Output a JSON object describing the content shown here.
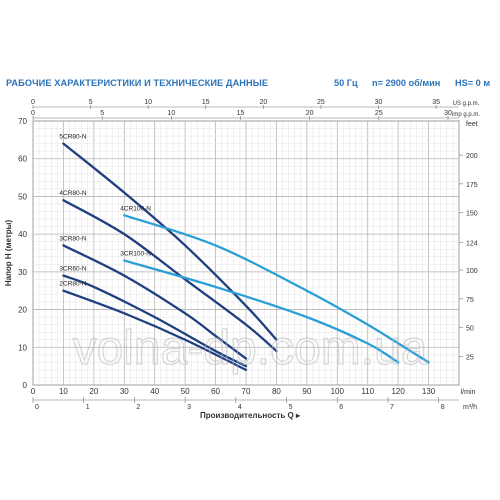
{
  "header": {
    "title": "РАБОЧИЕ ХАРАКТЕРИСТИКИ И ТЕХНИЧЕСКИЕ ДАННЫЕ",
    "frequency": "50 Гц",
    "speed": "n= 2900 об/мин",
    "hs": "HS= 0 м"
  },
  "watermark": "volna-dp.com.ua",
  "colors": {
    "dark_curve": "#1f3f80",
    "light_curve": "#2a9fd6",
    "axis_text": "#333333",
    "title": "#2c73b8",
    "grid": "#cfcfcf"
  },
  "chart_data": {
    "type": "line",
    "xlabel": "Производительность Q",
    "ylabel": "Напор Н (метры)",
    "xunit": "l/min",
    "xlim": [
      0,
      140
    ],
    "ylim": [
      0,
      70
    ],
    "x_ticks": [
      "0",
      "10",
      "20",
      "30",
      "40",
      "50",
      "60",
      "70",
      "80",
      "90",
      "100",
      "110",
      "120",
      "130"
    ],
    "y_ticks": [
      "0",
      "10",
      "20",
      "30",
      "40",
      "50",
      "60",
      "70"
    ],
    "right_axis": {
      "unit": "feet",
      "ticks": [
        "25",
        "50",
        "75",
        "100",
        "124",
        "150",
        "175",
        "200"
      ]
    },
    "top_axis_us": {
      "unit": "US g.p.m.",
      "ticks": [
        "0",
        "5",
        "10",
        "15",
        "20",
        "25",
        "30",
        "35"
      ]
    },
    "top_axis_imp": {
      "unit": "imp g.p.m.",
      "ticks": [
        "0",
        "5",
        "10",
        "15",
        "20",
        "25",
        "30"
      ]
    },
    "bottom_axis_m3h": {
      "unit": "m³/h",
      "ticks": [
        "0",
        "1",
        "2",
        "3",
        "4",
        "5",
        "6",
        "7",
        "8"
      ]
    },
    "series": [
      {
        "name": "5CR80-N",
        "color": "dark",
        "x": [
          10,
          30,
          50,
          70,
          80
        ],
        "y": [
          64,
          51,
          37,
          21,
          12
        ]
      },
      {
        "name": "4CR80-N",
        "color": "dark",
        "x": [
          10,
          30,
          50,
          70,
          80
        ],
        "y": [
          49,
          40,
          28,
          16,
          9
        ]
      },
      {
        "name": "3CR80-N",
        "color": "dark",
        "x": [
          10,
          30,
          50,
          60,
          70
        ],
        "y": [
          37,
          29,
          19,
          13,
          7
        ]
      },
      {
        "name": "3CR60-N",
        "color": "dark",
        "x": [
          10,
          20,
          40,
          60,
          70
        ],
        "y": [
          29,
          26,
          18,
          9,
          5
        ]
      },
      {
        "name": "2CR80-N",
        "color": "dark",
        "x": [
          10,
          30,
          50,
          70
        ],
        "y": [
          25,
          19,
          12,
          4
        ]
      },
      {
        "name": "4CR100-N",
        "color": "light",
        "x": [
          30,
          60,
          90,
          110,
          130
        ],
        "y": [
          45,
          37,
          25,
          16,
          6
        ]
      },
      {
        "name": "3CR100-N",
        "color": "light",
        "x": [
          30,
          60,
          90,
          110,
          120
        ],
        "y": [
          33,
          26,
          18,
          11,
          6
        ]
      }
    ]
  }
}
